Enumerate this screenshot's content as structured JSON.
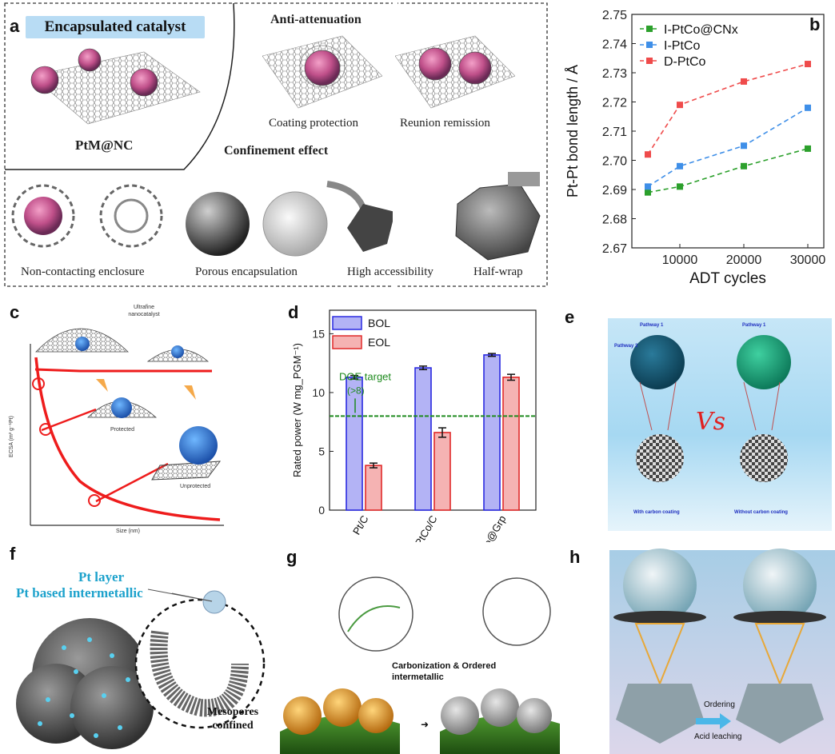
{
  "panel_a": {
    "label": "a",
    "encapsulated_title": "Encapsulated catalyst",
    "encapsulated_caption": "PtM@NC",
    "anti_attenuation_title": "Anti-attenuation",
    "coating_caption": "Coating protection",
    "reunion_caption": "Reunion remission",
    "confinement_title": "Confinement effect",
    "captions": [
      "Non-contacting enclosure",
      "Porous encapsulation",
      "High accessibility",
      "Half-wrap"
    ]
  },
  "panel_b": {
    "label": "b",
    "chart_data": {
      "type": "line",
      "xlabel": "ADT cycles",
      "ylabel": "Pt-Pt bond length / Å",
      "x": [
        5000,
        10000,
        20000,
        30000
      ],
      "xticks": [
        10000,
        20000,
        30000
      ],
      "xlim": [
        2500,
        32500
      ],
      "ylim": [
        2.67,
        2.75
      ],
      "yticks": [
        2.67,
        2.68,
        2.69,
        2.7,
        2.71,
        2.72,
        2.73,
        2.74,
        2.75
      ],
      "legend_position": "top-left",
      "series": [
        {
          "name": "I-PtCo@CNx",
          "values": [
            2.689,
            2.691,
            2.698,
            2.704
          ],
          "color": "#2ca02c"
        },
        {
          "name": "I-PtCo",
          "values": [
            2.691,
            2.698,
            2.705,
            2.718
          ],
          "color": "#3f8fe8"
        },
        {
          "name": "D-PtCo",
          "values": [
            2.702,
            2.719,
            2.727,
            2.733
          ],
          "color": "#ef4b4b"
        }
      ]
    }
  },
  "panel_c": {
    "label": "c",
    "top_label": "Ultrafine nanocatalyst",
    "protected_label": "Protected",
    "unprotected_label": "Unprotected",
    "ylabel": "ECSA (m² g⁻¹Pt)",
    "xlabel": "Size (nm)"
  },
  "panel_d": {
    "label": "d",
    "chart_data": {
      "type": "bar",
      "categories": [
        "Pt/C",
        "c-PtCo/C",
        "PtCo@Grp"
      ],
      "ylabel": "Rated power (W mg_PGM⁻¹)",
      "ylim": [
        0,
        17
      ],
      "yticks": [
        0,
        5,
        10,
        15
      ],
      "target_value": 8,
      "target_label": "DOE target",
      "target_note": "(>8)",
      "legend_position": "top-left",
      "series": [
        {
          "name": "BOL",
          "values": [
            11.3,
            12.1,
            13.2
          ],
          "errors": [
            0.15,
            0.15,
            0.12
          ],
          "color": "#b3b3f5",
          "edge": "#2a2ae0"
        },
        {
          "name": "EOL",
          "values": [
            3.8,
            6.6,
            11.3
          ],
          "errors": [
            0.2,
            0.4,
            0.25
          ],
          "color": "#f5b3b3",
          "edge": "#e02a2a"
        }
      ]
    }
  },
  "panel_e": {
    "label": "e",
    "pathway1_left": "Pathway 1",
    "pathway2_left": "Pathway 2",
    "pathway1_right": "Pathway 1",
    "vs_text": "Vs",
    "left_caption": "With carbon coating",
    "right_caption": "Without carbon coating"
  },
  "panel_f": {
    "label": "f",
    "pt_layer": "Pt layer",
    "pt_intermetallic": "Pt based intermetallic",
    "mesopores": "Mesopores confined"
  },
  "panel_g": {
    "label": "g",
    "process_text": "Carbonization & Ordered intermetallic"
  },
  "panel_h": {
    "label": "h",
    "ordering": "Ordering",
    "acid_leaching": "Acid leaching"
  }
}
